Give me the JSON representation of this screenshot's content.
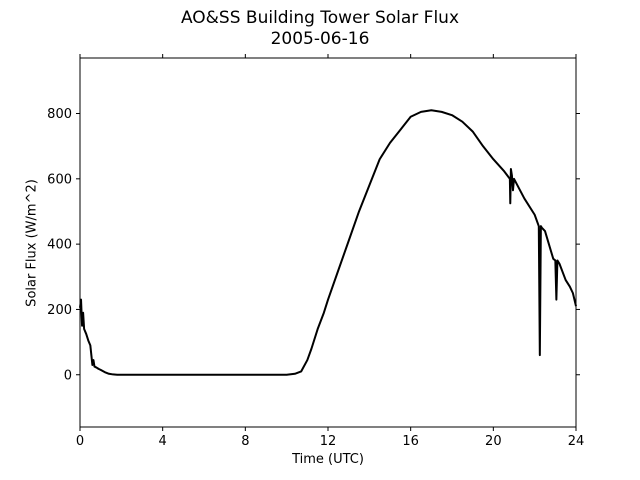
{
  "chart_data": {
    "type": "line",
    "title": "AO&SS Building Tower Solar Flux",
    "subtitle": "2005-06-16",
    "xlabel": "Time (UTC)",
    "ylabel": "Solar Flux (W/m^2)",
    "xlim": [
      0,
      24
    ],
    "ylim": [
      -160,
      970
    ],
    "xticks": [
      0,
      4,
      8,
      12,
      16,
      20,
      24
    ],
    "yticks": [
      0,
      200,
      400,
      600,
      800
    ],
    "grid": false,
    "legend": "none",
    "series": [
      {
        "color": "#000000",
        "x": [
          0.0,
          0.05,
          0.1,
          0.15,
          0.2,
          0.3,
          0.4,
          0.5,
          0.6,
          0.65,
          0.7,
          0.8,
          0.85,
          0.9,
          1.0,
          1.2,
          1.4,
          1.6,
          1.8,
          2.0,
          2.5,
          3,
          4,
          5,
          6,
          7,
          8,
          9,
          10.0,
          10.4,
          10.7,
          11.0,
          11.2,
          11.5,
          11.8,
          12.0,
          12.5,
          13.0,
          13.5,
          14.0,
          14.5,
          15.0,
          15.5,
          16.0,
          16.5,
          17.0,
          17.5,
          18.0,
          18.5,
          19.0,
          19.5,
          20.0,
          20.5,
          20.8,
          20.82,
          20.85,
          20.9,
          20.95,
          21.0,
          21.5,
          22.0,
          22.2,
          22.25,
          22.3,
          22.35,
          22.5,
          22.9,
          23.0,
          23.05,
          23.1,
          23.2,
          23.5,
          23.7,
          23.85,
          24.0
        ],
        "y": [
          205,
          230,
          150,
          190,
          140,
          125,
          105,
          90,
          30,
          45,
          25,
          22,
          20,
          18,
          15,
          8,
          3,
          1,
          0,
          0,
          0,
          0,
          0,
          0,
          0,
          0,
          0,
          0,
          0,
          3,
          10,
          45,
          80,
          140,
          190,
          230,
          320,
          410,
          500,
          580,
          660,
          710,
          750,
          790,
          805,
          810,
          805,
          795,
          775,
          745,
          700,
          660,
          625,
          600,
          525,
          630,
          610,
          565,
          600,
          540,
          490,
          455,
          60,
          455,
          450,
          440,
          355,
          350,
          230,
          350,
          340,
          290,
          270,
          250,
          210
        ]
      }
    ]
  }
}
